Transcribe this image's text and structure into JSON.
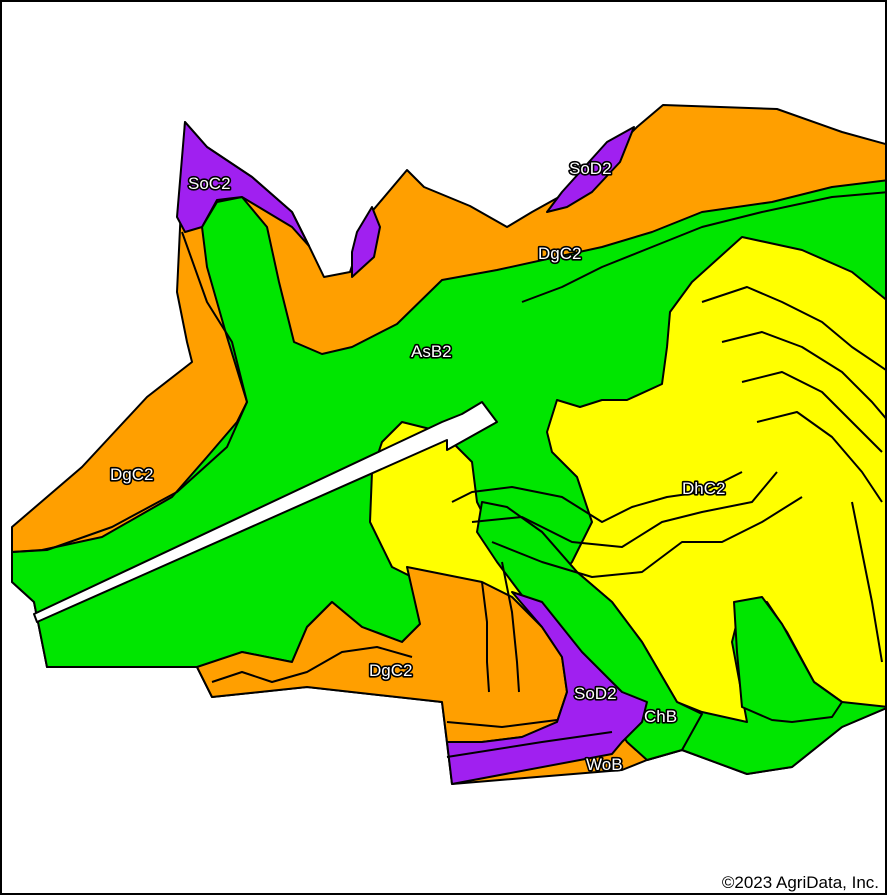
{
  "colors": {
    "orange": "#ff9f00",
    "green": "#00e600",
    "yellow": "#ffff00",
    "purple": "#a020f0",
    "road": "#ffffff",
    "boundary": "#000000"
  },
  "soil_labels": [
    {
      "id": "soc2",
      "text": "SoC2"
    },
    {
      "id": "sod2-top",
      "text": "SoD2"
    },
    {
      "id": "dgc2-top",
      "text": "DgC2"
    },
    {
      "id": "asb2",
      "text": "AsB2"
    },
    {
      "id": "dgc2-left",
      "text": "DgC2"
    },
    {
      "id": "dhc2",
      "text": "DhC2"
    },
    {
      "id": "dgc2-bottom",
      "text": "DgC2"
    },
    {
      "id": "sod2-bottom",
      "text": "SoD2"
    },
    {
      "id": "chb",
      "text": "ChB"
    },
    {
      "id": "wob",
      "text": "WoB"
    }
  ],
  "copyright": "©2023 AgriData, Inc."
}
